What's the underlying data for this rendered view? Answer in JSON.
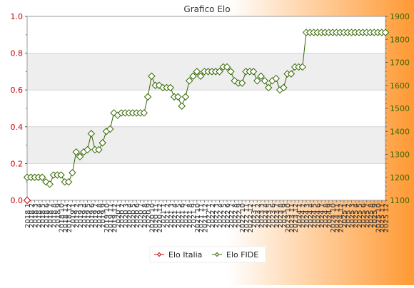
{
  "chart_data": {
    "type": "line",
    "title": "Grafico Elo",
    "left_axis": {
      "ylim": [
        0,
        1
      ],
      "ticks": [
        "0.0",
        "0.2",
        "0.4",
        "0.6",
        "0.8",
        "1.0"
      ],
      "color": "#cc0000"
    },
    "right_axis": {
      "ylim": [
        1100,
        1900
      ],
      "ticks": [
        "1100",
        "1200",
        "1300",
        "1400",
        "1500",
        "1600",
        "1700",
        "1800",
        "1900"
      ],
      "color": "#336600"
    },
    "x_start_label": "2018 1",
    "x_end_label": "2025 12",
    "grid": true,
    "legend_position": "bottom",
    "background_gradient": [
      "#ffffff",
      "#ff9933"
    ],
    "series": [
      {
        "name": "Elo Italia",
        "axis": "left",
        "color": "#cc0000",
        "marker": "diamond-open",
        "values": [
          0
        ]
      },
      {
        "name": "Elo FIDE",
        "axis": "right",
        "color": "#336600",
        "marker": "diamond-open",
        "values": [
          1200,
          1200,
          1200,
          1200,
          1200,
          1180,
          1170,
          1210,
          1210,
          1210,
          1180,
          1180,
          1220,
          1310,
          1290,
          1310,
          1320,
          1390,
          1320,
          1320,
          1350,
          1400,
          1410,
          1480,
          1470,
          1480,
          1480,
          1480,
          1480,
          1480,
          1480,
          1480,
          1550,
          1640,
          1600,
          1600,
          1590,
          1590,
          1590,
          1550,
          1550,
          1510,
          1550,
          1620,
          1640,
          1660,
          1640,
          1660,
          1660,
          1660,
          1660,
          1660,
          1680,
          1680,
          1660,
          1620,
          1610,
          1610,
          1660,
          1660,
          1660,
          1620,
          1640,
          1620,
          1590,
          1620,
          1630,
          1580,
          1590,
          1650,
          1650,
          1680,
          1680,
          1680,
          1830,
          1830,
          1830,
          1830,
          1830,
          1830,
          1830,
          1830,
          1830,
          1830,
          1830,
          1830,
          1830,
          1830,
          1830,
          1830,
          1830,
          1830,
          1830,
          1830,
          1830,
          1830
        ]
      }
    ]
  }
}
